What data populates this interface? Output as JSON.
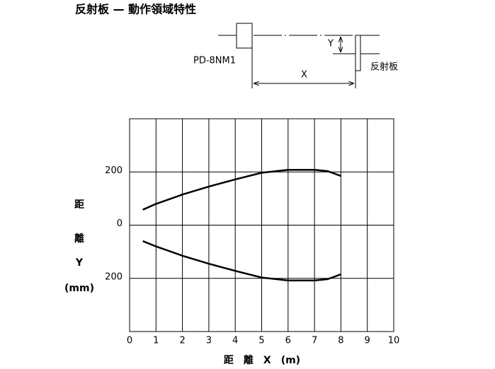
{
  "chart_data": {
    "type": "line",
    "title": "反射板 — 動作領域特性",
    "annotations": [
      "PD-8NM1",
      "Y",
      "X",
      "反射板"
    ],
    "x_label": "距　離　X　(m)",
    "y_label": [
      "距",
      "離",
      "Y",
      "(mm)"
    ],
    "xlim": [
      0,
      10
    ],
    "xticks": [
      0,
      1,
      2,
      3,
      4,
      5,
      6,
      7,
      8,
      9,
      10
    ],
    "ylim": [
      -400,
      400
    ],
    "yticks": [
      {
        "value": -200,
        "label": "200"
      },
      0,
      200
    ],
    "grid": true,
    "x": [
      0.5,
      1,
      2,
      3,
      4,
      5,
      6,
      7,
      7.5,
      8
    ],
    "series": [
      {
        "color": "#000000",
        "values": [
          58,
          80,
          115,
          145,
          172,
          197,
          208,
          208,
          203,
          185
        ]
      },
      {
        "color": "#000000",
        "values": [
          -60,
          -80,
          -115,
          -145,
          -172,
          -197,
          -208,
          -208,
          -203,
          -185
        ]
      }
    ]
  }
}
